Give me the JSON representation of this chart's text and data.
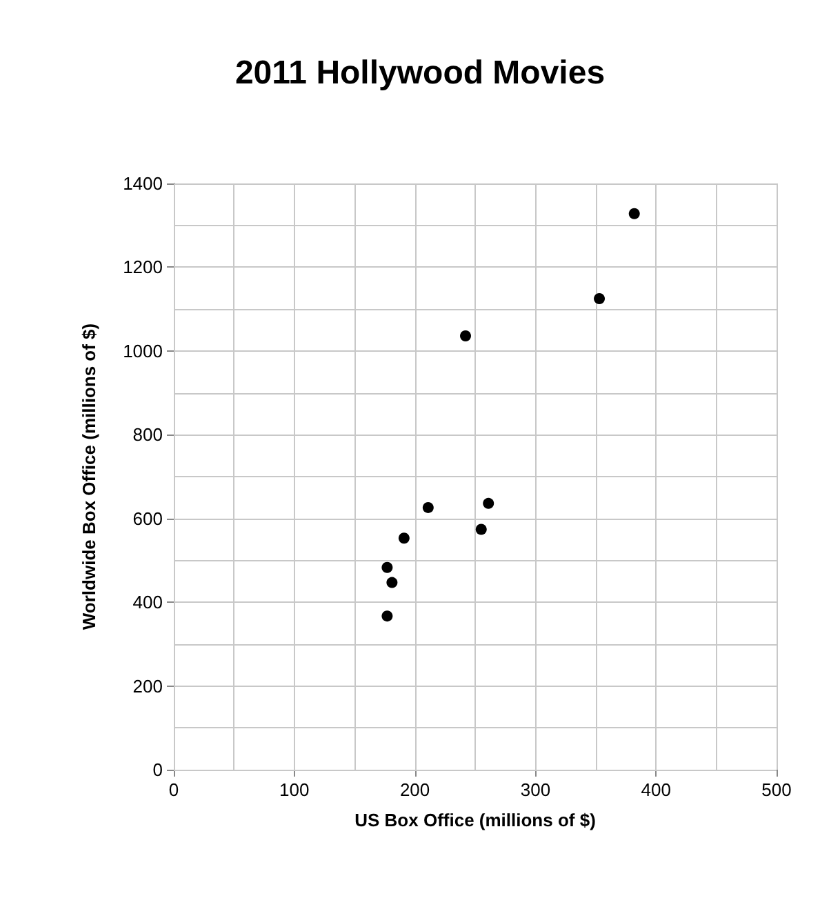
{
  "chart_data": {
    "type": "scatter",
    "title": "2011 Hollywood Movies",
    "xlabel": "US Box Office (millions of $)",
    "ylabel": "Worldwide Box Office (millions of $)",
    "x": [
      382,
      353,
      242,
      211,
      261,
      255,
      191,
      177,
      181,
      177
    ],
    "values": [
      1328,
      1125,
      1036,
      626,
      636,
      574,
      553,
      483,
      447,
      367
    ],
    "color": "#000000",
    "marker": "circle",
    "grid": true,
    "xlim": [
      0,
      500
    ],
    "ylim": [
      0,
      1400
    ],
    "xticks": [
      0,
      {
        "value": 50,
        "label": null
      },
      100,
      {
        "value": 150,
        "label": null
      },
      200,
      {
        "value": 250,
        "label": null
      },
      300,
      {
        "value": 350,
        "label": null
      },
      400,
      {
        "value": 450,
        "label": null
      },
      500
    ],
    "yticks": [
      0,
      {
        "value": 100,
        "label": null
      },
      200,
      {
        "value": 300,
        "label": null
      },
      400,
      {
        "value": 500,
        "label": null
      },
      600,
      {
        "value": 700,
        "label": null
      },
      800,
      {
        "value": 900,
        "label": null
      },
      1000,
      {
        "value": 1100,
        "label": null
      },
      1200,
      {
        "value": 1300,
        "label": null
      },
      1400
    ]
  }
}
